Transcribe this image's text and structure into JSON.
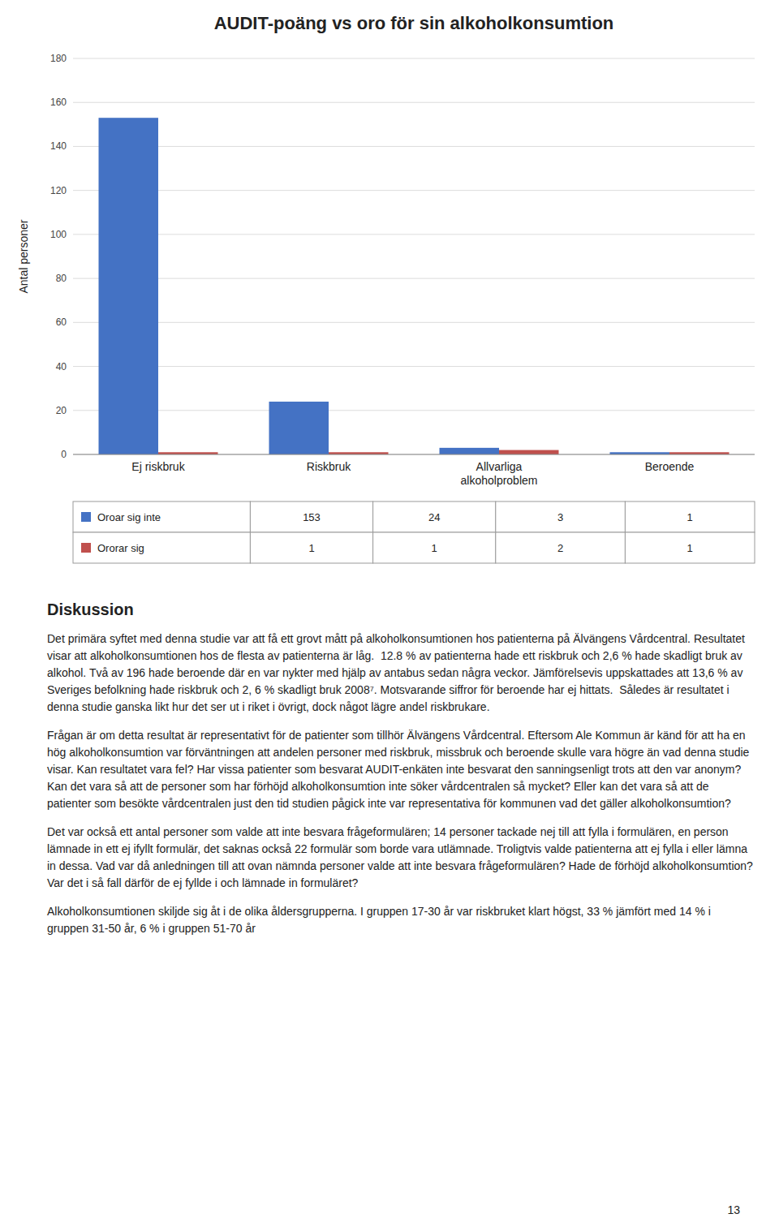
{
  "chart_data": {
    "type": "bar",
    "title": "AUDIT-poäng vs oro för sin alkoholkonsumtion",
    "categories": [
      "Ej riskbruk",
      "Riskbruk",
      "Allvarliga\nalkoholproblem",
      "Beroende"
    ],
    "series": [
      {
        "name": "Oroar sig inte",
        "color": "#4472C4",
        "values": [
          153,
          24,
          3,
          1
        ]
      },
      {
        "name": "Ororar sig",
        "color": "#C0504D",
        "values": [
          1,
          1,
          2,
          1
        ]
      }
    ],
    "ylabel": "Antal personer",
    "ylim": [
      0,
      180
    ],
    "yticks": [
      0,
      20,
      40,
      60,
      80,
      100,
      120,
      140,
      160,
      180
    ],
    "grid": true
  },
  "text": {
    "heading": "Diskussion",
    "paragraphs": [
      "Det primära syftet med denna studie var att få ett grovt mått på alkoholkonsumtionen hos patienterna på Älvängens Vårdcentral. Resultatet visar att alkoholkonsumtionen hos de flesta av patienterna är låg.  12.8 % av patienterna hade ett riskbruk och 2,6 % hade skadligt bruk av alkohol. Två av 196 hade beroende där en var nykter med hjälp av antabus sedan några veckor. Jämförelsevis uppskattades att 13,6 % av Sveriges befolkning hade riskbruk och 2, 6 % skadligt bruk 2008⁷. Motsvarande siffror för beroende har ej hittats.  Således är resultatet i denna studie ganska likt hur det ser ut i riket i övrigt, dock något lägre andel riskbrukare.",
      "Frågan är om detta resultat är representativt för de patienter som tillhör Älvängens Vårdcentral. Eftersom Ale Kommun är känd för att ha en hög alkoholkonsumtion var förväntningen att andelen personer med riskbruk, missbruk och beroende skulle vara högre än vad denna studie visar. Kan resultatet vara fel? Har vissa patienter som besvarat AUDIT-enkäten inte besvarat den sanningsenligt trots att den var anonym? Kan det vara så att de personer som har förhöjd alkoholkonsumtion inte söker vårdcentralen så mycket? Eller kan det vara så att de patienter som besökte vårdcentralen just den tid studien pågick inte var representativa för kommunen vad det gäller alkoholkonsumtion?",
      "Det var också ett antal personer som valde att inte besvara frågeformulären; 14 personer tackade nej till att fylla i formulären, en person lämnade in ett ej ifyllt formulär, det saknas också 22 formulär som borde vara utlämnade. Troligtvis valde patienterna att ej fylla i eller lämna in dessa. Vad var då anledningen till att ovan nämnda personer valde att inte besvara frågeformulären? Hade de förhöjd alkoholkonsumtion? Var det i så fall därför de ej fyllde i och lämnade in formuläret?",
      "Alkoholkonsumtionen skiljde sig åt i de olika åldersgrupperna. I gruppen 17-30 år var riskbruket klart högst, 33 % jämfört med 14 % i gruppen 31-50 år, 6 % i gruppen 51-70 år"
    ],
    "page_number": "13"
  }
}
